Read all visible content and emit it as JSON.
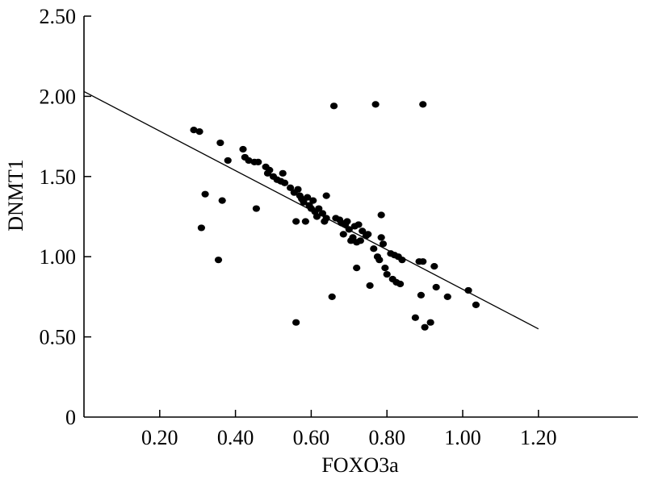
{
  "chart_data": {
    "type": "scatter",
    "xlabel": "FOXO3a",
    "ylabel": "DNMT1",
    "xlim": [
      0,
      1.2
    ],
    "ylim": [
      0,
      2.5
    ],
    "x_ticks": [
      {
        "value": 0.2,
        "label": "0.20"
      },
      {
        "value": 0.4,
        "label": "0.40"
      },
      {
        "value": 0.6,
        "label": "0.60"
      },
      {
        "value": 0.8,
        "label": "0.80"
      },
      {
        "value": 1.0,
        "label": "1.00"
      },
      {
        "value": 1.2,
        "label": "1.20"
      }
    ],
    "y_ticks": [
      {
        "value": 0.0,
        "label": "0"
      },
      {
        "value": 0.5,
        "label": "0.50"
      },
      {
        "value": 1.0,
        "label": "1.00"
      },
      {
        "value": 1.5,
        "label": "1.50"
      },
      {
        "value": 2.0,
        "label": "2.00"
      },
      {
        "value": 2.5,
        "label": "2.50"
      }
    ],
    "trend_line": {
      "x": [
        0.0,
        1.2
      ],
      "y": [
        2.03,
        0.55
      ]
    },
    "grid": false,
    "marker_color": "#000000",
    "points": [
      {
        "x": 0.29,
        "y": 1.79
      },
      {
        "x": 0.305,
        "y": 1.78
      },
      {
        "x": 0.31,
        "y": 1.18
      },
      {
        "x": 0.32,
        "y": 1.39
      },
      {
        "x": 0.355,
        "y": 0.98
      },
      {
        "x": 0.36,
        "y": 1.71
      },
      {
        "x": 0.365,
        "y": 1.35
      },
      {
        "x": 0.38,
        "y": 1.6
      },
      {
        "x": 0.42,
        "y": 1.67
      },
      {
        "x": 0.425,
        "y": 1.62
      },
      {
        "x": 0.435,
        "y": 1.6
      },
      {
        "x": 0.45,
        "y": 1.59
      },
      {
        "x": 0.455,
        "y": 1.3
      },
      {
        "x": 0.46,
        "y": 1.59
      },
      {
        "x": 0.48,
        "y": 1.56
      },
      {
        "x": 0.485,
        "y": 1.52
      },
      {
        "x": 0.49,
        "y": 1.54
      },
      {
        "x": 0.5,
        "y": 1.5
      },
      {
        "x": 0.51,
        "y": 1.48
      },
      {
        "x": 0.52,
        "y": 1.47
      },
      {
        "x": 0.525,
        "y": 1.52
      },
      {
        "x": 0.53,
        "y": 1.46
      },
      {
        "x": 0.545,
        "y": 1.43
      },
      {
        "x": 0.555,
        "y": 1.4
      },
      {
        "x": 0.56,
        "y": 1.22
      },
      {
        "x": 0.56,
        "y": 0.59
      },
      {
        "x": 0.565,
        "y": 1.42
      },
      {
        "x": 0.57,
        "y": 1.38
      },
      {
        "x": 0.575,
        "y": 1.36
      },
      {
        "x": 0.58,
        "y": 1.34
      },
      {
        "x": 0.585,
        "y": 1.22
      },
      {
        "x": 0.59,
        "y": 1.37
      },
      {
        "x": 0.595,
        "y": 1.32
      },
      {
        "x": 0.6,
        "y": 1.3
      },
      {
        "x": 0.605,
        "y": 1.35
      },
      {
        "x": 0.61,
        "y": 1.28
      },
      {
        "x": 0.615,
        "y": 1.25
      },
      {
        "x": 0.62,
        "y": 1.3
      },
      {
        "x": 0.63,
        "y": 1.27
      },
      {
        "x": 0.635,
        "y": 1.22
      },
      {
        "x": 0.64,
        "y": 1.24
      },
      {
        "x": 0.64,
        "y": 1.38
      },
      {
        "x": 0.655,
        "y": 0.75
      },
      {
        "x": 0.66,
        "y": 1.94
      },
      {
        "x": 0.665,
        "y": 1.24
      },
      {
        "x": 0.675,
        "y": 1.23
      },
      {
        "x": 0.68,
        "y": 1.21
      },
      {
        "x": 0.685,
        "y": 1.14
      },
      {
        "x": 0.69,
        "y": 1.2
      },
      {
        "x": 0.695,
        "y": 1.22
      },
      {
        "x": 0.7,
        "y": 1.17
      },
      {
        "x": 0.705,
        "y": 1.1
      },
      {
        "x": 0.71,
        "y": 1.12
      },
      {
        "x": 0.715,
        "y": 1.19
      },
      {
        "x": 0.72,
        "y": 1.09
      },
      {
        "x": 0.72,
        "y": 0.93
      },
      {
        "x": 0.725,
        "y": 1.2
      },
      {
        "x": 0.73,
        "y": 1.1
      },
      {
        "x": 0.735,
        "y": 1.16
      },
      {
        "x": 0.745,
        "y": 1.13
      },
      {
        "x": 0.75,
        "y": 1.14
      },
      {
        "x": 0.755,
        "y": 0.82
      },
      {
        "x": 0.765,
        "y": 1.05
      },
      {
        "x": 0.77,
        "y": 1.95
      },
      {
        "x": 0.775,
        "y": 1.0
      },
      {
        "x": 0.78,
        "y": 0.98
      },
      {
        "x": 0.785,
        "y": 1.12
      },
      {
        "x": 0.785,
        "y": 1.26
      },
      {
        "x": 0.79,
        "y": 1.08
      },
      {
        "x": 0.795,
        "y": 0.93
      },
      {
        "x": 0.8,
        "y": 0.89
      },
      {
        "x": 0.81,
        "y": 1.02
      },
      {
        "x": 0.815,
        "y": 0.86
      },
      {
        "x": 0.82,
        "y": 1.01
      },
      {
        "x": 0.825,
        "y": 0.84
      },
      {
        "x": 0.83,
        "y": 1.0
      },
      {
        "x": 0.835,
        "y": 0.83
      },
      {
        "x": 0.84,
        "y": 0.98
      },
      {
        "x": 0.875,
        "y": 0.62
      },
      {
        "x": 0.885,
        "y": 0.97
      },
      {
        "x": 0.89,
        "y": 0.76
      },
      {
        "x": 0.895,
        "y": 0.97
      },
      {
        "x": 0.895,
        "y": 1.95
      },
      {
        "x": 0.9,
        "y": 0.56
      },
      {
        "x": 0.915,
        "y": 0.59
      },
      {
        "x": 0.925,
        "y": 0.94
      },
      {
        "x": 0.93,
        "y": 0.81
      },
      {
        "x": 0.96,
        "y": 0.75
      },
      {
        "x": 1.015,
        "y": 0.79
      },
      {
        "x": 1.035,
        "y": 0.7
      }
    ]
  }
}
